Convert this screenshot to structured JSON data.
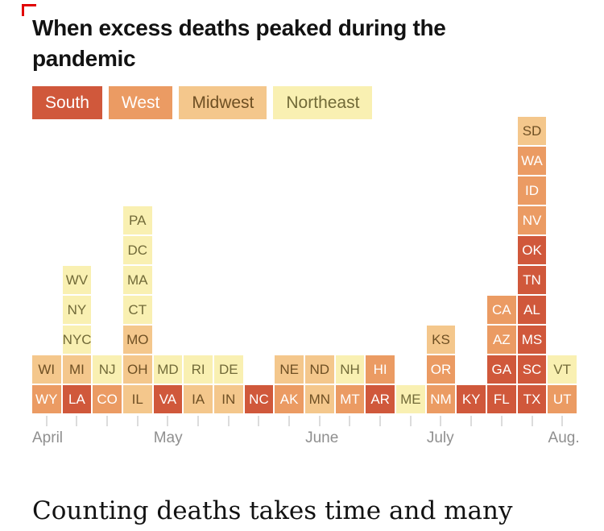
{
  "page": {
    "title_line1": "When excess deaths peaked during the",
    "title_line2": "pandemic",
    "footer_headline": "Counting deaths takes time and many"
  },
  "legend": {
    "items": [
      {
        "label": "South",
        "region": "south"
      },
      {
        "label": "West",
        "region": "west"
      },
      {
        "label": "Midwest",
        "region": "midwest"
      },
      {
        "label": "Northeast",
        "region": "northeast"
      }
    ]
  },
  "colors": {
    "south": {
      "fill": "#d0583b",
      "text": "#ffffff"
    },
    "west": {
      "fill": "#eb9b63",
      "text": "#ffffff"
    },
    "midwest": {
      "fill": "#f4c78c",
      "text": "#6e4f23"
    },
    "northeast": {
      "fill": "#f9f0b2",
      "text": "#716a38"
    }
  },
  "chart_data": {
    "type": "bar",
    "subtype": "stacked-unit-columns",
    "title": "When excess deaths peaked during the pandemic",
    "description": "Each cell is a state or jurisdiction placed in the week its excess deaths peaked; cell color encodes region group.",
    "legend_entries": [
      "South",
      "West",
      "Midwest",
      "Northeast"
    ],
    "x_axis_months": [
      {
        "label": "April",
        "column_index": 0
      },
      {
        "label": "May",
        "column_index": 4
      },
      {
        "label": "June",
        "column_index": 9
      },
      {
        "label": "July",
        "column_index": 13
      },
      {
        "label": "Aug.",
        "column_index": 17
      }
    ],
    "columns": [
      {
        "states_bottom_to_top": [
          {
            "code": "WY",
            "region": "west"
          },
          {
            "code": "WI",
            "region": "midwest"
          }
        ]
      },
      {
        "states_bottom_to_top": [
          {
            "code": "LA",
            "region": "south"
          },
          {
            "code": "MI",
            "region": "midwest"
          },
          {
            "code": "NYC",
            "region": "northeast"
          },
          {
            "code": "NY",
            "region": "northeast"
          },
          {
            "code": "WV",
            "region": "northeast"
          }
        ]
      },
      {
        "states_bottom_to_top": [
          {
            "code": "CO",
            "region": "west"
          },
          {
            "code": "NJ",
            "region": "northeast"
          }
        ]
      },
      {
        "states_bottom_to_top": [
          {
            "code": "IL",
            "region": "midwest"
          },
          {
            "code": "OH",
            "region": "midwest"
          },
          {
            "code": "MO",
            "region": "midwest"
          },
          {
            "code": "CT",
            "region": "northeast"
          },
          {
            "code": "MA",
            "region": "northeast"
          },
          {
            "code": "DC",
            "region": "northeast"
          },
          {
            "code": "PA",
            "region": "northeast"
          }
        ]
      },
      {
        "states_bottom_to_top": [
          {
            "code": "VA",
            "region": "south"
          },
          {
            "code": "MD",
            "region": "northeast"
          }
        ]
      },
      {
        "states_bottom_to_top": [
          {
            "code": "IA",
            "region": "midwest"
          },
          {
            "code": "RI",
            "region": "northeast"
          }
        ]
      },
      {
        "states_bottom_to_top": [
          {
            "code": "IN",
            "region": "midwest"
          },
          {
            "code": "DE",
            "region": "northeast"
          }
        ]
      },
      {
        "states_bottom_to_top": [
          {
            "code": "NC",
            "region": "south"
          }
        ]
      },
      {
        "states_bottom_to_top": [
          {
            "code": "AK",
            "region": "west"
          },
          {
            "code": "NE",
            "region": "midwest"
          }
        ]
      },
      {
        "states_bottom_to_top": [
          {
            "code": "MN",
            "region": "midwest"
          },
          {
            "code": "ND",
            "region": "midwest"
          }
        ]
      },
      {
        "states_bottom_to_top": [
          {
            "code": "MT",
            "region": "west"
          },
          {
            "code": "NH",
            "region": "northeast"
          }
        ]
      },
      {
        "states_bottom_to_top": [
          {
            "code": "AR",
            "region": "south"
          },
          {
            "code": "HI",
            "region": "west"
          }
        ]
      },
      {
        "states_bottom_to_top": [
          {
            "code": "ME",
            "region": "northeast"
          }
        ]
      },
      {
        "states_bottom_to_top": [
          {
            "code": "NM",
            "region": "west"
          },
          {
            "code": "OR",
            "region": "west"
          },
          {
            "code": "KS",
            "region": "midwest"
          }
        ]
      },
      {
        "states_bottom_to_top": [
          {
            "code": "KY",
            "region": "south"
          }
        ]
      },
      {
        "states_bottom_to_top": [
          {
            "code": "FL",
            "region": "south"
          },
          {
            "code": "GA",
            "region": "south"
          },
          {
            "code": "AZ",
            "region": "west"
          },
          {
            "code": "CA",
            "region": "west"
          }
        ]
      },
      {
        "states_bottom_to_top": [
          {
            "code": "TX",
            "region": "south"
          },
          {
            "code": "SC",
            "region": "south"
          },
          {
            "code": "MS",
            "region": "south"
          },
          {
            "code": "AL",
            "region": "south"
          },
          {
            "code": "TN",
            "region": "south"
          },
          {
            "code": "OK",
            "region": "south"
          },
          {
            "code": "NV",
            "region": "west"
          },
          {
            "code": "ID",
            "region": "west"
          },
          {
            "code": "WA",
            "region": "west"
          },
          {
            "code": "SD",
            "region": "midwest"
          }
        ]
      },
      {
        "states_bottom_to_top": [
          {
            "code": "UT",
            "region": "west"
          },
          {
            "code": "VT",
            "region": "northeast"
          }
        ]
      }
    ]
  }
}
